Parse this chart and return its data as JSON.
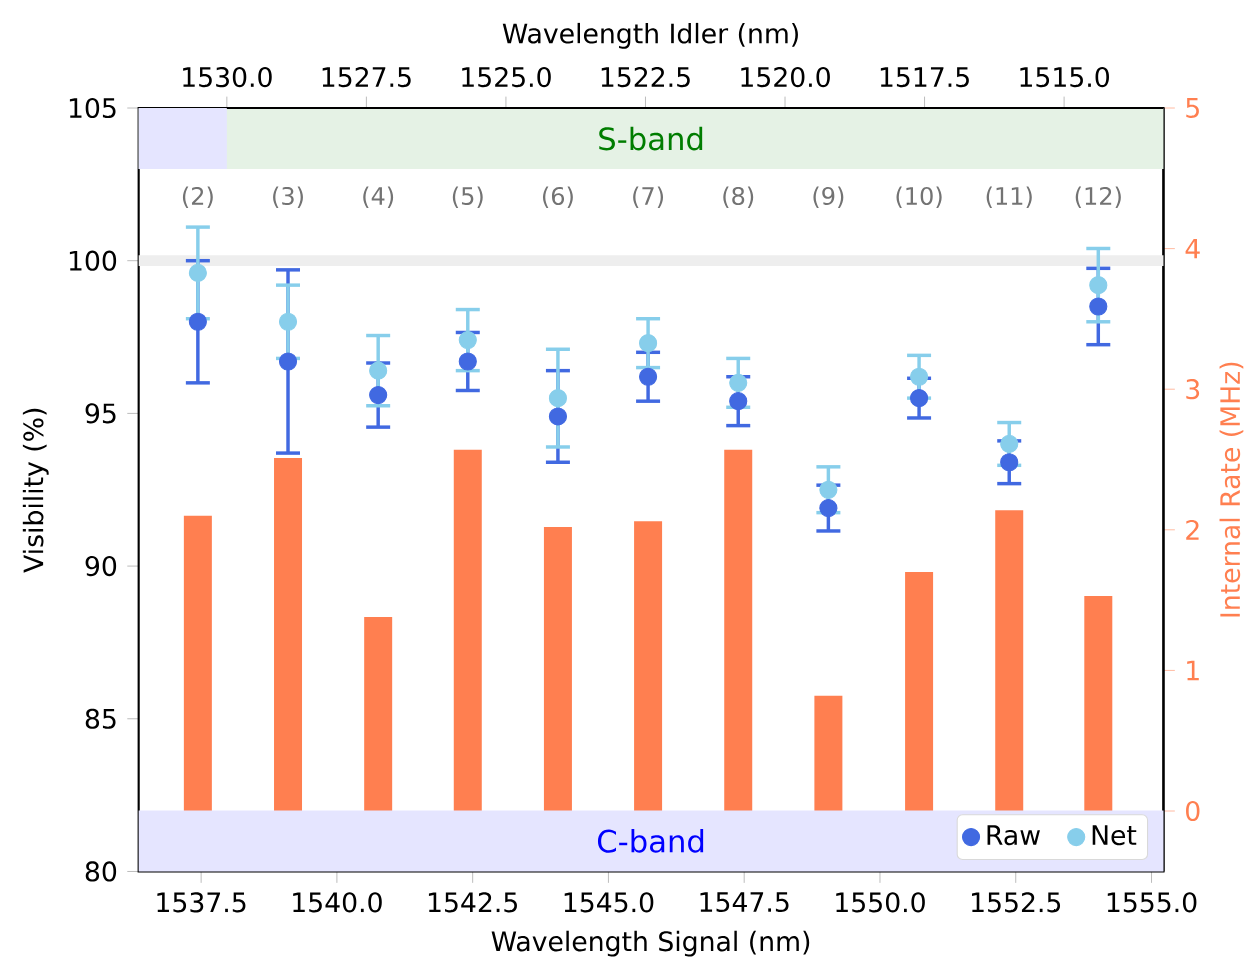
{
  "chart_data": {
    "type": "scatter",
    "xlabel": "Wavelength Signal (nm)",
    "ylabel": "Visibility (%)",
    "y2label": "Internal Rate (MHz)",
    "x2label": "Wavelength Idler (nm)",
    "x": [
      1537.44,
      1539.1,
      1540.76,
      1542.41,
      1544.07,
      1545.73,
      1547.39,
      1549.05,
      1550.72,
      1552.38,
      1554.02
    ],
    "series": [
      {
        "name": "Raw",
        "color": "#4169e1",
        "values": [
          98.0,
          96.7,
          95.6,
          96.7,
          94.9,
          96.2,
          95.4,
          91.9,
          95.5,
          93.4,
          98.5
        ],
        "errors": [
          2.0,
          3.0,
          1.05,
          0.95,
          1.5,
          0.8,
          0.8,
          0.75,
          0.65,
          0.7,
          1.25
        ]
      },
      {
        "name": "Net",
        "color": "#87ceeb",
        "values": [
          99.6,
          98.0,
          96.4,
          97.4,
          95.5,
          97.3,
          96.0,
          92.5,
          96.2,
          94.0,
          99.2
        ],
        "errors": [
          1.5,
          1.2,
          1.15,
          1.0,
          1.6,
          0.8,
          0.8,
          0.75,
          0.7,
          0.7,
          1.2
        ]
      },
      {
        "type": "bar",
        "axis": "y2",
        "color": "#ff7f50",
        "values": [
          2.1,
          2.51,
          1.38,
          2.57,
          2.02,
          2.06,
          2.57,
          0.82,
          1.7,
          2.14,
          1.53
        ]
      }
    ],
    "xlim": [
      1536.35,
      1555.22
    ],
    "xticks": [
      {
        "value": 1537.5,
        "label": "1537.5"
      },
      {
        "value": 1540,
        "label": "1540.0"
      },
      {
        "value": 1542.5,
        "label": "1542.5"
      },
      {
        "value": 1545,
        "label": "1545.0"
      },
      {
        "value": 1547.5,
        "label": "1547.5"
      },
      {
        "value": 1550,
        "label": "1550.0"
      },
      {
        "value": 1552.5,
        "label": "1552.5"
      },
      {
        "value": 1555,
        "label": "1555.0"
      }
    ],
    "x2lim": [
      1531.58,
      1513.22
    ],
    "x2ticks": [
      {
        "value": 1530,
        "label": "1530.0"
      },
      {
        "value": 1527.5,
        "label": "1527.5"
      },
      {
        "value": 1525,
        "label": "1525.0"
      },
      {
        "value": 1522.5,
        "label": "1522.5"
      },
      {
        "value": 1520,
        "label": "1520.0"
      },
      {
        "value": 1517.5,
        "label": "1517.5"
      },
      {
        "value": 1515,
        "label": "1515.0"
      }
    ],
    "ylim": [
      80,
      105
    ],
    "yticks": [
      80,
      85,
      90,
      95,
      100,
      105
    ],
    "y2lim": [
      -0.43,
      5
    ],
    "y2ticks": [
      0,
      1,
      2,
      3,
      4,
      5
    ],
    "marker": "circle",
    "legend": "bottom right",
    "ref_lines": [
      {
        "axis": "y",
        "value": 100,
        "color": "#eeeeee"
      }
    ],
    "bands": [
      {
        "axis": "y",
        "from": 80,
        "to": 82,
        "label": "C-band",
        "color": "#e5e5ff"
      },
      {
        "axis": "y",
        "from": 103,
        "to": 105,
        "label": "S-band",
        "color": "#e5f2e5"
      },
      {
        "axis": "x2",
        "from": 1531.58,
        "to": 1530,
        "color": "#e5e5ff"
      }
    ],
    "annotations": [
      "(2)",
      "(3)",
      "(4)",
      "(5)",
      "(6)",
      "(7)",
      "(8)",
      "(9)",
      "(10)",
      "(11)",
      "(12)"
    ]
  }
}
